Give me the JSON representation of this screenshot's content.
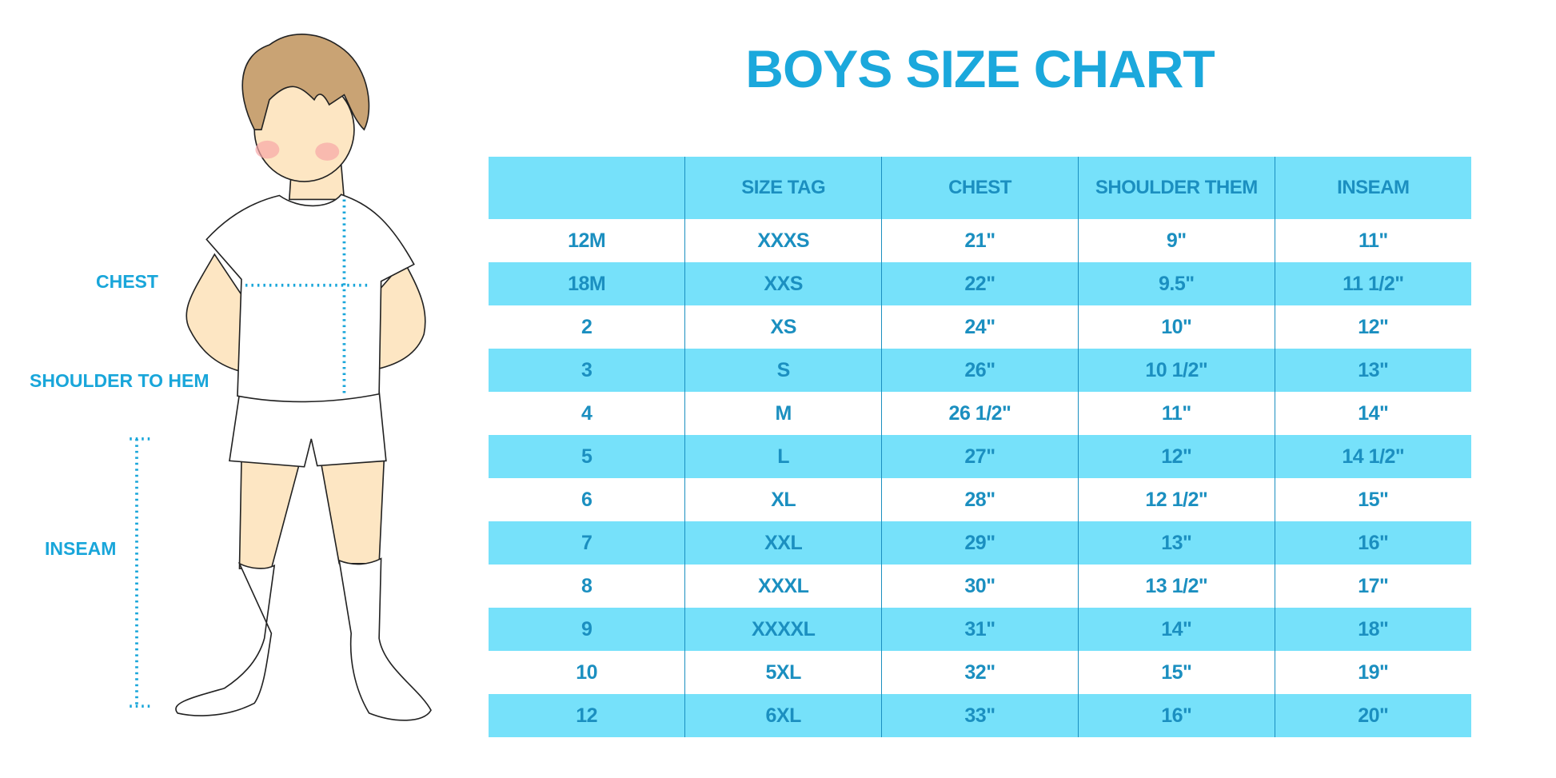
{
  "title": "BOYS SIZE CHART",
  "labels": {
    "chest": "CHEST",
    "shoulder_to_hem": "SHOULDER TO HEM",
    "inseam": "INSEAM"
  },
  "colors": {
    "accent": "#1ba8dc",
    "row_fill": "#76e1fa",
    "divider": "#1b8fc0"
  },
  "table": {
    "headers": [
      "",
      "SIZE TAG",
      "CHEST",
      "SHOULDER THEM",
      "INSEAM"
    ],
    "rows": [
      [
        "12M",
        "XXXS",
        "21\"",
        "9\"",
        "11\""
      ],
      [
        "18M",
        "XXS",
        "22\"",
        "9.5\"",
        "11 1/2\""
      ],
      [
        "2",
        "XS",
        "24\"",
        "10\"",
        "12\""
      ],
      [
        "3",
        "S",
        "26\"",
        "10 1/2\"",
        "13\""
      ],
      [
        "4",
        "M",
        "26 1/2\"",
        "11\"",
        "14\""
      ],
      [
        "5",
        "L",
        "27\"",
        "12\"",
        "14 1/2\""
      ],
      [
        "6",
        "XL",
        "28\"",
        "12 1/2\"",
        "15\""
      ],
      [
        "7",
        "XXL",
        "29\"",
        "13\"",
        "16\""
      ],
      [
        "8",
        "XXXL",
        "30\"",
        "13 1/2\"",
        "17\""
      ],
      [
        "9",
        "XXXXL",
        "31\"",
        "14\"",
        "18\""
      ],
      [
        "10",
        "5XL",
        "32\"",
        "15\"",
        "19\""
      ],
      [
        "12",
        "6XL",
        "33\"",
        "16\"",
        "20\""
      ]
    ]
  }
}
